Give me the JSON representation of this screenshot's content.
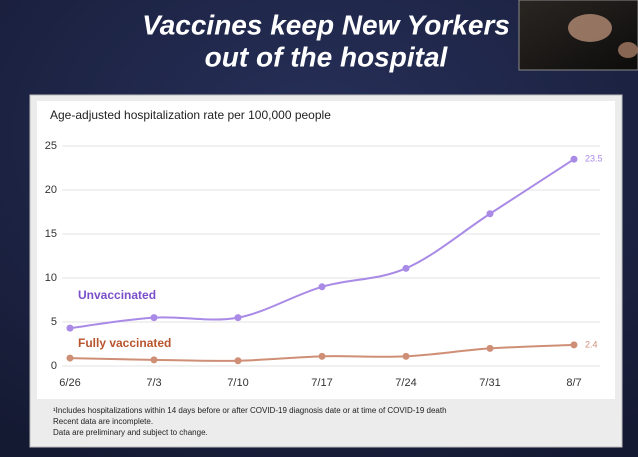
{
  "slide_title": [
    "Vaccines keep New Yorkers",
    "out of the hospital"
  ],
  "chart_data": {
    "type": "line",
    "title": "Age-adjusted hospitalization rate per 100,000 people",
    "categories": [
      "6/26",
      "7/3",
      "7/10",
      "7/17",
      "7/24",
      "7/31",
      "8/7"
    ],
    "series": [
      {
        "name": "Unvaccinated",
        "color": "#a98ae6",
        "label_color": "#7b4fc8",
        "values": [
          4.3,
          5.5,
          5.5,
          9.0,
          11.1,
          17.3,
          23.5
        ]
      },
      {
        "name": "Fully vaccinated",
        "color": "#cf8f76",
        "label_color": "#b8552e",
        "values": [
          0.9,
          0.7,
          0.6,
          1.1,
          1.1,
          2.0,
          2.4
        ]
      }
    ],
    "ylim": [
      0,
      25
    ],
    "yticks": [
      0,
      5,
      10,
      15,
      20,
      25
    ],
    "grid": true,
    "footnotes": [
      "¹Includes hospitalizations within 14 days before or after COVID-19 diagnosis date or at time of COVID-19 death",
      "Recent data are incomplete.",
      "Data are preliminary and subject to change."
    ]
  }
}
